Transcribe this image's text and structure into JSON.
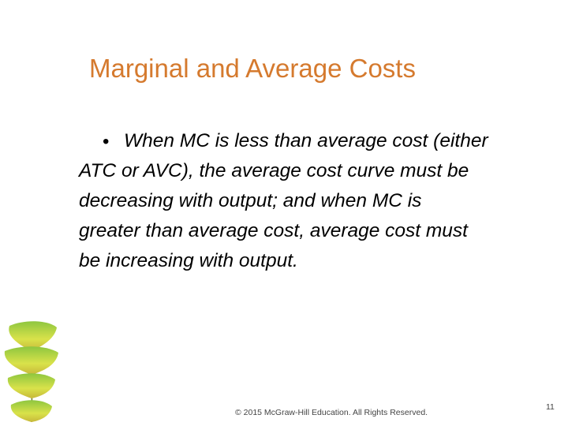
{
  "slide": {
    "title": "Marginal and Average Costs",
    "bullets": [
      {
        "lines": [
          "When MC is less than average cost (either",
          "ATC or AVC), the average cost curve must be",
          "decreasing with output; and when MC is",
          "greater than average cost, average cost must",
          "be increasing with output."
        ]
      }
    ],
    "footer": "© 2015 McGraw-Hill Education. All Rights Reserved.",
    "page_number": "11"
  }
}
